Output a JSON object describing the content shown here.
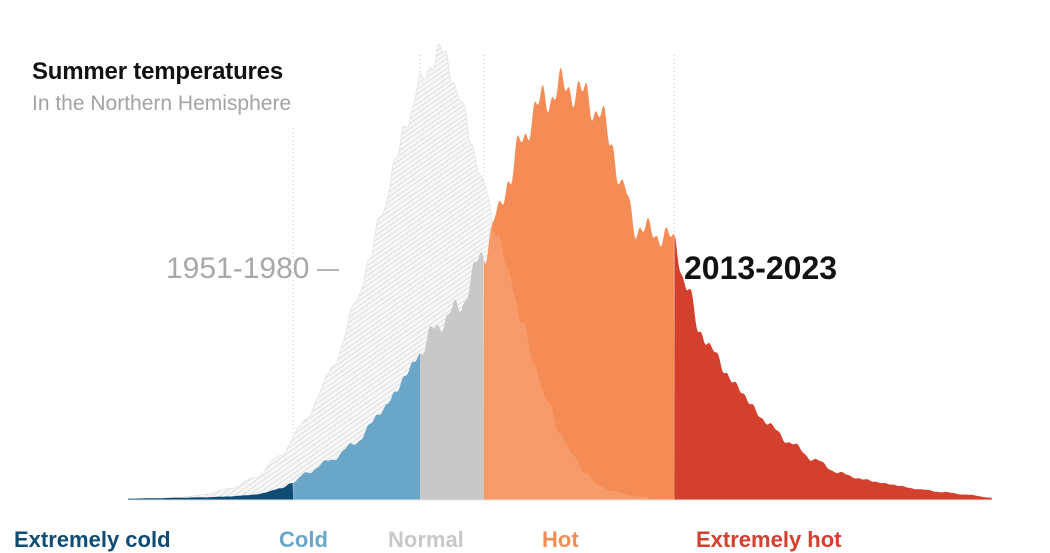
{
  "header": {
    "title": "Summer temperatures",
    "subtitle": "In the Northern Hemisphere"
  },
  "colors": {
    "extremely_cold": "#0f4c75",
    "cold": "#6aa6c8",
    "normal": "#c8c8c8",
    "hot": "#f68c55",
    "extremely_hot": "#d3402e",
    "baseline_hatch": "#cfcfcf"
  },
  "chart_data": {
    "type": "area",
    "title": "Summer temperatures",
    "subtitle": "In the Northern Hemisphere",
    "xlabel": "",
    "ylabel": "",
    "grid": false,
    "x_range": [
      -2.8,
      4.0
    ],
    "y_range": [
      0,
      1
    ],
    "category_bounds": [
      -3.0,
      -1.5,
      -0.5,
      0.0,
      1.5,
      4.0
    ],
    "categories": [
      {
        "key": "extremely_cold",
        "label": "Extremely cold"
      },
      {
        "key": "cold",
        "label": "Cold"
      },
      {
        "key": "normal",
        "label": "Normal"
      },
      {
        "key": "hot",
        "label": "Hot"
      },
      {
        "key": "extremely_hot",
        "label": "Extremely hot"
      }
    ],
    "series": [
      {
        "name": "1951-1980",
        "style": "hatched",
        "x": [
          -2.8,
          -2.6,
          -2.4,
          -2.2,
          -2.0,
          -1.8,
          -1.6,
          -1.4,
          -1.2,
          -1.0,
          -0.9,
          -0.8,
          -0.7,
          -0.6,
          -0.5,
          -0.4,
          -0.35,
          -0.3,
          -0.25,
          -0.2,
          -0.15,
          -0.1,
          0.0,
          0.1,
          0.2,
          0.3,
          0.4,
          0.5,
          0.6,
          0.7,
          0.8,
          0.9,
          1.0,
          1.2,
          1.4,
          1.6,
          1.8,
          2.0,
          2.4,
          2.8,
          3.2,
          3.6,
          4.0
        ],
        "y": [
          0.0,
          0.002,
          0.006,
          0.012,
          0.025,
          0.05,
          0.1,
          0.18,
          0.29,
          0.44,
          0.54,
          0.64,
          0.75,
          0.85,
          0.93,
          0.98,
          1.0,
          0.99,
          0.95,
          0.9,
          0.86,
          0.8,
          0.7,
          0.6,
          0.5,
          0.4,
          0.3,
          0.22,
          0.15,
          0.1,
          0.06,
          0.035,
          0.02,
          0.008,
          0.003,
          0.001,
          0.0,
          0.0,
          0.0,
          0.0,
          0.0,
          0.0,
          0.0
        ]
      },
      {
        "name": "2013-2023",
        "style": "filled",
        "x": [
          -2.8,
          -2.6,
          -2.4,
          -2.2,
          -2.0,
          -1.8,
          -1.6,
          -1.5,
          -1.4,
          -1.2,
          -1.0,
          -0.8,
          -0.6,
          -0.5,
          -0.4,
          -0.2,
          0.0,
          0.1,
          0.2,
          0.3,
          0.4,
          0.5,
          0.6,
          0.7,
          0.8,
          0.9,
          1.0,
          1.1,
          1.2,
          1.3,
          1.4,
          1.5,
          1.6,
          1.7,
          1.8,
          2.0,
          2.2,
          2.4,
          2.6,
          2.8,
          3.0,
          3.2,
          3.4,
          3.6,
          3.8,
          4.0
        ],
        "y": [
          0.003,
          0.004,
          0.005,
          0.006,
          0.008,
          0.012,
          0.025,
          0.04,
          0.06,
          0.09,
          0.13,
          0.2,
          0.28,
          0.33,
          0.38,
          0.43,
          0.55,
          0.63,
          0.72,
          0.8,
          0.87,
          0.9,
          0.92,
          0.92,
          0.9,
          0.87,
          0.8,
          0.69,
          0.61,
          0.6,
          0.59,
          0.58,
          0.47,
          0.38,
          0.33,
          0.25,
          0.18,
          0.13,
          0.09,
          0.06,
          0.045,
          0.035,
          0.025,
          0.018,
          0.012,
          0.005
        ]
      }
    ],
    "legend": "inline"
  }
}
